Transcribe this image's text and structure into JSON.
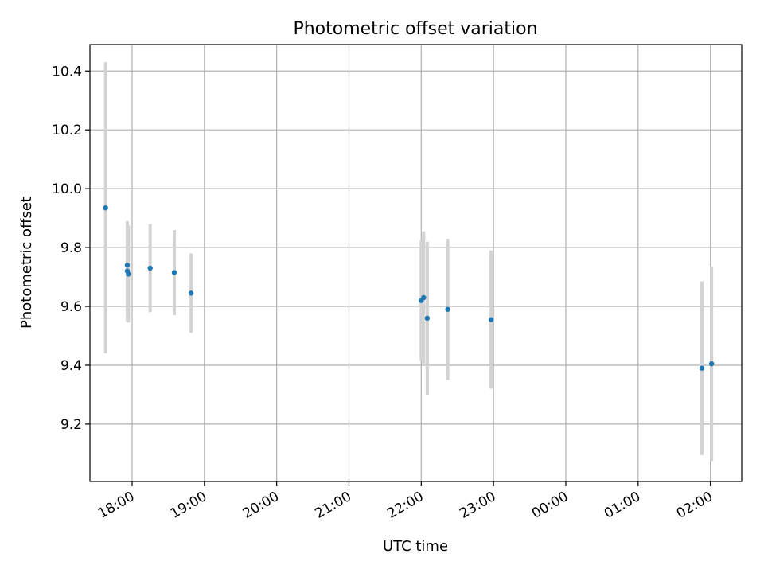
{
  "chart_data": {
    "type": "scatter",
    "title": "Photometric offset variation",
    "xlabel": "UTC time",
    "ylabel": "Photometric offset",
    "x_unit": "UTC time (HH:MM)",
    "xlim": [
      "17:25",
      "02:26"
    ],
    "ylim": [
      9.005,
      10.49
    ],
    "grid": true,
    "x_ticks": [
      "18:00",
      "19:00",
      "20:00",
      "21:00",
      "22:00",
      "23:00",
      "00:00",
      "01:00",
      "02:00"
    ],
    "y_ticks": [
      9.2,
      9.4,
      9.6,
      9.8,
      10.0,
      10.2,
      10.4
    ],
    "y_tick_labels": [
      "9.2",
      "9.4",
      "9.6",
      "9.8",
      "10.0",
      "10.2",
      "10.4"
    ],
    "point_color": "#1f77b4",
    "errorbar_color": "#d3d3d3",
    "points": [
      {
        "t": "17:38",
        "y": 9.935,
        "err": 0.495
      },
      {
        "t": "17:56",
        "y": 9.74,
        "err": 0.15
      },
      {
        "t": "17:56",
        "y": 9.72,
        "err": 0.17
      },
      {
        "t": "17:57",
        "y": 9.71,
        "err": 0.165
      },
      {
        "t": "18:15",
        "y": 9.73,
        "err": 0.15
      },
      {
        "t": "18:35",
        "y": 9.715,
        "err": 0.145
      },
      {
        "t": "18:49",
        "y": 9.645,
        "err": 0.135
      },
      {
        "t": "22:00",
        "y": 9.62,
        "err": 0.205
      },
      {
        "t": "22:02",
        "y": 9.63,
        "err": 0.225
      },
      {
        "t": "22:05",
        "y": 9.56,
        "err": 0.26
      },
      {
        "t": "22:22",
        "y": 9.59,
        "err": 0.24
      },
      {
        "t": "22:58",
        "y": 9.555,
        "err": 0.235
      },
      {
        "t": "01:53",
        "y": 9.39,
        "err": 0.295
      },
      {
        "t": "02:01",
        "y": 9.405,
        "err": 0.33
      }
    ]
  }
}
